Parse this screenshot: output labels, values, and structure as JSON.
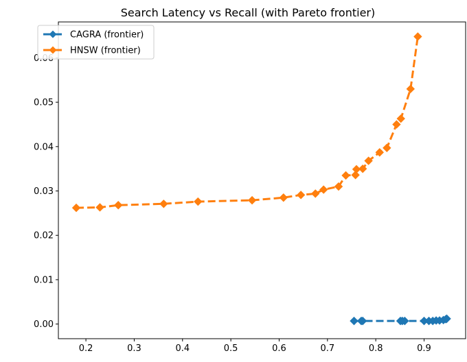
{
  "chart_data": {
    "type": "line",
    "title": "Search Latency vs Recall (with Pareto frontier)",
    "xlabel": "",
    "ylabel": "",
    "xlim": [
      0.143,
      0.986
    ],
    "ylim": [
      -0.0033,
      0.0681
    ],
    "x_ticks": [
      0.2,
      0.3,
      0.4,
      0.5,
      0.6,
      0.7,
      0.8,
      0.9
    ],
    "x_tick_labels": [
      "0.2",
      "0.3",
      "0.4",
      "0.5",
      "0.6",
      "0.7",
      "0.8",
      "0.9"
    ],
    "y_ticks": [
      0.0,
      0.01,
      0.02,
      0.03,
      0.04,
      0.05,
      0.06
    ],
    "y_tick_labels": [
      "0.00",
      "0.01",
      "0.02",
      "0.03",
      "0.04",
      "0.05",
      "0.06"
    ],
    "grid": false,
    "legend_position": "upper-left",
    "series": [
      {
        "name": "CAGRA (frontier)",
        "color": "#1f77b4",
        "line_style": "dashed",
        "marker": "diamond",
        "x": [
          0.755,
          0.77,
          0.773,
          0.851,
          0.855,
          0.86,
          0.9,
          0.91,
          0.918,
          0.925,
          0.932,
          0.94,
          0.945,
          0.947
        ],
        "y": [
          0.0007,
          0.0007,
          0.0007,
          0.0007,
          0.0007,
          0.0007,
          0.0007,
          0.0007,
          0.0007,
          0.0008,
          0.0008,
          0.0009,
          0.0011,
          0.0012
        ]
      },
      {
        "name": "HNSW (frontier)",
        "color": "#ff7f0e",
        "line_style": "dashed",
        "marker": "diamond",
        "x": [
          0.18,
          0.229,
          0.267,
          0.361,
          0.432,
          0.544,
          0.609,
          0.645,
          0.675,
          0.692,
          0.723,
          0.738,
          0.758,
          0.76,
          0.773,
          0.785,
          0.808,
          0.823,
          0.843,
          0.852,
          0.872,
          0.887
        ],
        "y": [
          0.0262,
          0.0263,
          0.0268,
          0.0271,
          0.0276,
          0.0279,
          0.0285,
          0.0291,
          0.0294,
          0.0303,
          0.031,
          0.0335,
          0.0336,
          0.0349,
          0.035,
          0.0368,
          0.0387,
          0.0397,
          0.045,
          0.0463,
          0.053,
          0.0648
        ]
      }
    ]
  }
}
